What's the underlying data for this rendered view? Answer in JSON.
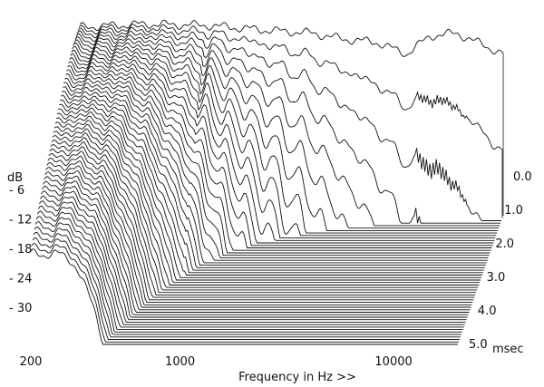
{
  "chart_data": {
    "type": "waterfall",
    "xlabel": "Frequency in Hz >>",
    "ylabel": "dB",
    "zlabel": "msec",
    "x_scale": "log",
    "x_range_hz": [
      200,
      20000
    ],
    "x_ticks": [
      {
        "value": 200,
        "label": "200"
      },
      {
        "value": 1000,
        "label": "1000"
      },
      {
        "value": 10000,
        "label": "10000"
      }
    ],
    "y_range_db": [
      -33,
      0
    ],
    "y_ticks": [
      {
        "value": -6,
        "label": "- 6"
      },
      {
        "value": -12,
        "label": "- 12"
      },
      {
        "value": -18,
        "label": "- 18"
      },
      {
        "value": -24,
        "label": "- 24"
      },
      {
        "value": -30,
        "label": "- 30"
      }
    ],
    "time_range_ms": [
      0,
      5
    ],
    "time_ticks": [
      {
        "value": 0,
        "label": "0.0"
      },
      {
        "value": 1,
        "label": "1.0"
      },
      {
        "value": 2,
        "label": "2.0"
      },
      {
        "value": 3,
        "label": "3.0"
      },
      {
        "value": 4,
        "label": "4.0"
      },
      {
        "value": 5,
        "label": "5.0"
      }
    ],
    "slice_count": 53,
    "initial_response_db": [
      [
        200,
        -1.5
      ],
      [
        400,
        -1.0
      ],
      [
        800,
        -1.2
      ],
      [
        1500,
        -2.0
      ],
      [
        2500,
        -2.5
      ],
      [
        3500,
        -3.5
      ],
      [
        5000,
        -4.0
      ],
      [
        7000,
        -6.0
      ],
      [
        9000,
        -3.0
      ],
      [
        12000,
        -2.5
      ],
      [
        15000,
        -4.0
      ],
      [
        20000,
        -6.0
      ]
    ],
    "grid": false,
    "legend": "none"
  }
}
